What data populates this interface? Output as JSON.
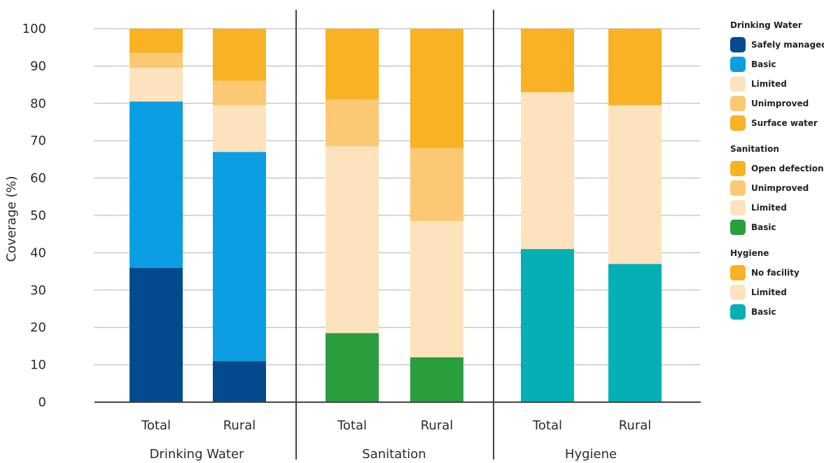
{
  "chart_data": {
    "type": "bar",
    "stacked": true,
    "ylabel": "Coverage (%)",
    "ylim": [
      0,
      100
    ],
    "yticks": [
      "0",
      "10",
      "20",
      "30",
      "40",
      "50",
      "60",
      "70",
      "80",
      "90",
      "100"
    ],
    "grid": "horizontal dotted",
    "legend_position": "right",
    "groups": [
      {
        "name": "Drinking Water",
        "categories": [
          "Total",
          "Rural"
        ],
        "series": [
          {
            "name": "Safely managed",
            "color": "#044a8f",
            "values": [
              36,
              11
            ]
          },
          {
            "name": "Basic",
            "color": "#0b9ee3",
            "values": [
              44.5,
              56
            ]
          },
          {
            "name": "Limited",
            "color": "#fde3bd",
            "values": [
              9,
              12.5
            ]
          },
          {
            "name": "Unimproved",
            "color": "#fbc973",
            "values": [
              4,
              6.5
            ]
          },
          {
            "name": "Surface water",
            "color": "#f8b224",
            "values": [
              6.5,
              14
            ]
          }
        ]
      },
      {
        "name": "Sanitation",
        "categories": [
          "Total",
          "Rural"
        ],
        "series": [
          {
            "name": "Basic",
            "color": "#2a9d3d",
            "values": [
              18.5,
              12
            ]
          },
          {
            "name": "Limited",
            "color": "#fde3bd",
            "values": [
              50,
              36.5
            ]
          },
          {
            "name": "Unimproved",
            "color": "#fbc973",
            "values": [
              12.5,
              19.5
            ]
          },
          {
            "name": "Open defection",
            "color": "#f8b224",
            "values": [
              19,
              32
            ]
          }
        ]
      },
      {
        "name": "Hygiene",
        "categories": [
          "Total",
          "Rural"
        ],
        "series": [
          {
            "name": "Basic",
            "color": "#05b0b5",
            "values": [
              41,
              37
            ]
          },
          {
            "name": "Limited",
            "color": "#fde3bd",
            "values": [
              42,
              42.5
            ]
          },
          {
            "name": "No facility",
            "color": "#f8b224",
            "values": [
              17,
              20.5
            ]
          }
        ]
      }
    ]
  },
  "legend": [
    {
      "title": "Drinking Water",
      "items": [
        {
          "label": "Safely managed",
          "color": "#044a8f"
        },
        {
          "label": "Basic",
          "color": "#0b9ee3"
        },
        {
          "label": "Limited",
          "color": "#fde3bd"
        },
        {
          "label": "Unimproved",
          "color": "#fbc973"
        },
        {
          "label": "Surface water",
          "color": "#f8b224"
        }
      ]
    },
    {
      "title": "Sanitation",
      "items": [
        {
          "label": "Open defection",
          "color": "#f8b224"
        },
        {
          "label": "Unimproved",
          "color": "#fbc973"
        },
        {
          "label": "Limited",
          "color": "#fde3bd"
        },
        {
          "label": "Basic",
          "color": "#2a9d3d"
        }
      ]
    },
    {
      "title": "Hygiene",
      "items": [
        {
          "label": "No facility",
          "color": "#f8b224"
        },
        {
          "label": "Limited",
          "color": "#fde3bd"
        },
        {
          "label": "Basic",
          "color": "#05b0b5"
        }
      ]
    }
  ]
}
